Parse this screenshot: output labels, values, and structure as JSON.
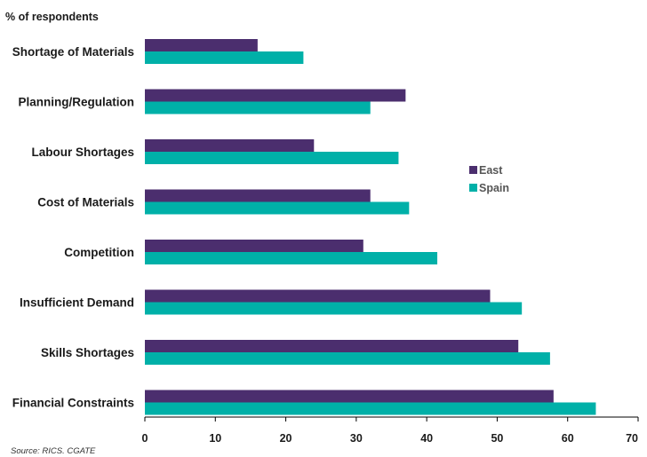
{
  "chart_data": {
    "type": "bar",
    "orientation": "horizontal",
    "unit_label": "% of respondents",
    "categories": [
      "Shortage of Materials",
      "Planning/Regulation",
      "Labour Shortages",
      "Cost of Materials",
      "Competition",
      "Insufficient Demand",
      "Skills Shortages",
      "Financial Constraints"
    ],
    "series": [
      {
        "name": "East",
        "color": "#4b2e6e",
        "values": [
          16,
          37,
          24,
          32,
          31,
          49,
          53,
          58
        ]
      },
      {
        "name": "Spain",
        "color": "#00b0a8",
        "values": [
          22.5,
          32,
          36,
          37.5,
          41.5,
          53.5,
          57.5,
          64
        ]
      }
    ],
    "xlim": [
      0,
      70
    ],
    "xticks": [
      "0",
      "10",
      "20",
      "30",
      "40",
      "50",
      "60",
      "70"
    ],
    "grid": false,
    "legend_position": "right-middle",
    "source": "Source: RICS. CGATE"
  }
}
